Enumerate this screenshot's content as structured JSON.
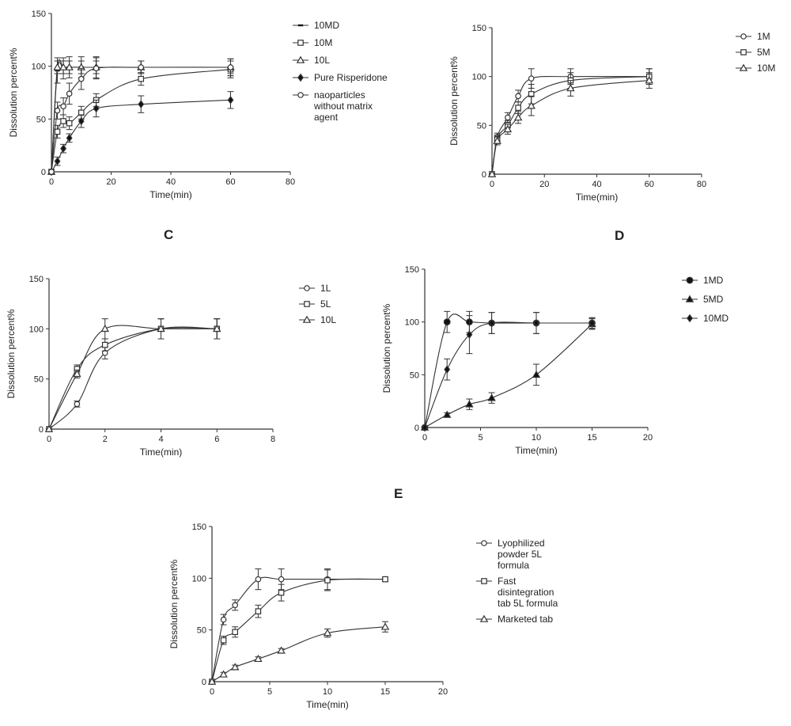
{
  "panel_letters": [
    "C",
    "D",
    "E"
  ],
  "chart_data": [
    {
      "type": "line",
      "xlabel": "Time(min)",
      "ylabel": "Dissolution percent%",
      "xlim": [
        0,
        80
      ],
      "ylim": [
        0,
        150
      ],
      "xticks": [
        0,
        20,
        40,
        60,
        80
      ],
      "yticks": [
        0,
        50,
        100,
        150
      ],
      "legend_position": "right",
      "series": [
        {
          "name": "10MD",
          "marker": "dash",
          "x": [
            0,
            2,
            4,
            6,
            10,
            15,
            30,
            60
          ],
          "y": [
            0,
            96,
            98,
            99,
            99,
            99,
            99,
            99
          ],
          "err": [
            0,
            12,
            10,
            10,
            10,
            10,
            6,
            8
          ]
        },
        {
          "name": "10M",
          "marker": "square",
          "x": [
            0,
            2,
            4,
            6,
            10,
            15,
            30,
            60
          ],
          "y": [
            0,
            38,
            48,
            46,
            56,
            68,
            88,
            97
          ],
          "err": [
            0,
            6,
            6,
            6,
            6,
            6,
            6,
            8
          ]
        },
        {
          "name": "10L",
          "marker": "triangle",
          "x": [
            0,
            2,
            4,
            6,
            10,
            15,
            30,
            60
          ],
          "y": [
            0,
            99,
            99,
            99,
            99,
            99,
            99,
            99
          ],
          "err": [
            0,
            6,
            6,
            6,
            6,
            6,
            6,
            6
          ]
        },
        {
          "name": "Pure Risperidone",
          "marker": "diamond",
          "x": [
            0,
            2,
            4,
            6,
            10,
            15,
            30,
            60
          ],
          "y": [
            0,
            10,
            22,
            32,
            48,
            60,
            64,
            68
          ],
          "err": [
            0,
            4,
            4,
            4,
            6,
            8,
            8,
            8
          ]
        },
        {
          "name": "naoparticles without matrix agent",
          "marker": "circle",
          "x": [
            0,
            2,
            4,
            6,
            10,
            15,
            30,
            60
          ],
          "y": [
            0,
            58,
            62,
            74,
            88,
            98,
            99,
            99
          ],
          "err": [
            0,
            8,
            8,
            10,
            10,
            10,
            6,
            8
          ]
        }
      ]
    },
    {
      "type": "line",
      "xlabel": "Time(min)",
      "ylabel": "Dissolution percent%",
      "xlim": [
        0,
        80
      ],
      "ylim": [
        0,
        150
      ],
      "xticks": [
        0,
        20,
        40,
        60,
        80
      ],
      "yticks": [
        0,
        50,
        100,
        150
      ],
      "legend_position": "right",
      "series": [
        {
          "name": "1M",
          "marker": "circle",
          "x": [
            0,
            2,
            6,
            10,
            15,
            30,
            60
          ],
          "y": [
            0,
            38,
            58,
            80,
            98,
            100,
            100
          ],
          "err": [
            0,
            4,
            5,
            6,
            10,
            8,
            8
          ]
        },
        {
          "name": "5M",
          "marker": "square",
          "x": [
            0,
            2,
            6,
            10,
            15,
            30,
            60
          ],
          "y": [
            0,
            36,
            50,
            68,
            82,
            96,
            100
          ],
          "err": [
            0,
            4,
            5,
            6,
            10,
            8,
            8
          ]
        },
        {
          "name": "10M",
          "marker": "triangle",
          "x": [
            0,
            2,
            6,
            10,
            15,
            30,
            60
          ],
          "y": [
            0,
            34,
            46,
            58,
            70,
            88,
            96
          ],
          "err": [
            0,
            4,
            5,
            6,
            10,
            8,
            8
          ]
        }
      ]
    },
    {
      "type": "line",
      "xlabel": "Time(min)",
      "ylabel": "Dissolution percent%",
      "xlim": [
        0,
        8
      ],
      "ylim": [
        0,
        150
      ],
      "xticks": [
        0,
        2,
        4,
        6,
        8
      ],
      "yticks": [
        0,
        50,
        100,
        150
      ],
      "legend_position": "right",
      "series": [
        {
          "name": "1L",
          "marker": "circle",
          "x": [
            0,
            1,
            2,
            4,
            6
          ],
          "y": [
            0,
            25,
            76,
            100,
            100
          ],
          "err": [
            0,
            3,
            6,
            10,
            10
          ]
        },
        {
          "name": "5L",
          "marker": "square",
          "x": [
            0,
            1,
            2,
            4,
            6
          ],
          "y": [
            0,
            60,
            84,
            100,
            100
          ],
          "err": [
            0,
            4,
            6,
            10,
            10
          ]
        },
        {
          "name": "10L",
          "marker": "triangle",
          "x": [
            0,
            1,
            2,
            4,
            6
          ],
          "y": [
            0,
            55,
            100,
            100,
            100
          ],
          "err": [
            0,
            4,
            10,
            10,
            10
          ]
        }
      ]
    },
    {
      "type": "line",
      "xlabel": "Time(min)",
      "ylabel": "Dissolution percent%",
      "xlim": [
        0,
        20
      ],
      "ylim": [
        0,
        150
      ],
      "xticks": [
        0,
        5,
        10,
        15,
        20
      ],
      "yticks": [
        0,
        50,
        100,
        150
      ],
      "legend_position": "right",
      "series": [
        {
          "name": "1MD",
          "marker": "circle-filled",
          "x": [
            0,
            2,
            4,
            6,
            10,
            15
          ],
          "y": [
            0,
            100,
            100,
            99,
            99,
            99
          ],
          "err": [
            0,
            10,
            10,
            10,
            10,
            5
          ]
        },
        {
          "name": "5MD",
          "marker": "triangle-filled",
          "x": [
            0,
            2,
            4,
            6,
            10,
            15
          ],
          "y": [
            0,
            12,
            22,
            28,
            50,
            98
          ],
          "err": [
            0,
            2,
            5,
            5,
            10,
            5
          ]
        },
        {
          "name": "10MD",
          "marker": "diamond",
          "x": [
            0,
            2,
            4,
            6,
            10,
            15
          ],
          "y": [
            0,
            55,
            88,
            99,
            99,
            99
          ],
          "err": [
            0,
            10,
            18,
            10,
            10,
            5
          ]
        }
      ]
    },
    {
      "type": "line",
      "xlabel": "Time(min)",
      "ylabel": "Dissolution percent%",
      "xlim": [
        0,
        20
      ],
      "ylim": [
        0,
        150
      ],
      "xticks": [
        0,
        5,
        10,
        15,
        20
      ],
      "yticks": [
        0,
        50,
        100,
        150
      ],
      "legend_position": "right",
      "series": [
        {
          "name": "Lyophilized powder 5L formula",
          "marker": "circle",
          "x": [
            0,
            1,
            2,
            4,
            6,
            10,
            15
          ],
          "y": [
            0,
            60,
            74,
            99,
            99,
            99,
            99
          ],
          "err": [
            0,
            5,
            5,
            10,
            10,
            10,
            2
          ]
        },
        {
          "name": "Fast disintegration tab 5L formula",
          "marker": "square",
          "x": [
            0,
            1,
            2,
            4,
            6,
            10,
            15
          ],
          "y": [
            0,
            40,
            48,
            68,
            86,
            98,
            99
          ],
          "err": [
            0,
            4,
            5,
            6,
            8,
            10,
            2
          ]
        },
        {
          "name": "Marketed tab",
          "marker": "triangle",
          "x": [
            0,
            1,
            2,
            4,
            6,
            10,
            15
          ],
          "y": [
            0,
            7,
            14,
            22,
            30,
            47,
            53
          ],
          "err": [
            0,
            2,
            2,
            2,
            2,
            4,
            5
          ]
        }
      ]
    }
  ]
}
